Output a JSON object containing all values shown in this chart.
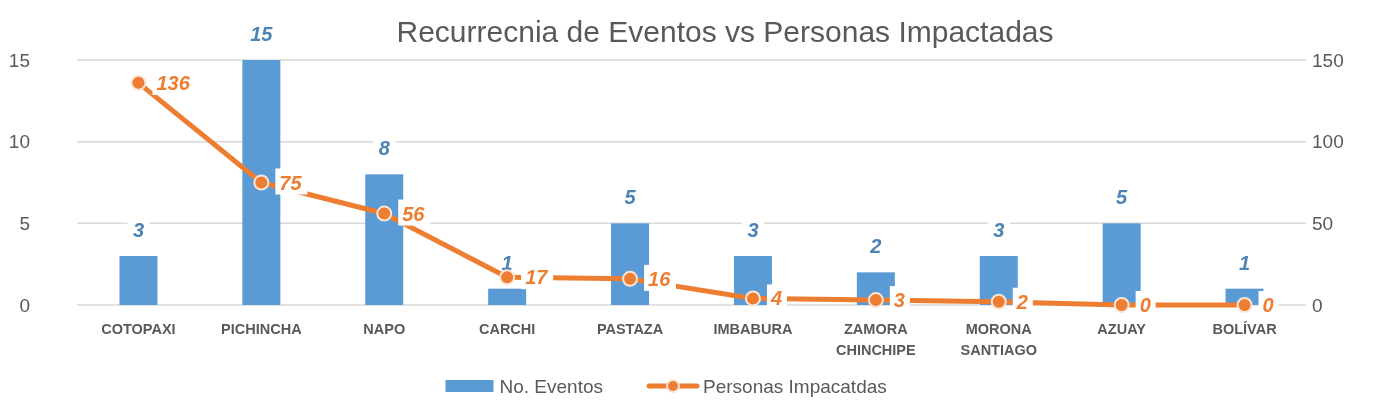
{
  "chart_data": {
    "type": "bar",
    "title": "Recurrecnia de Eventos vs Personas Impactadas",
    "categories": [
      "COTOPAXI",
      "PICHINCHA",
      "NAPO",
      "CARCHI",
      "PASTAZA",
      "IMBABURA",
      "ZAMORA CHINCHIPE",
      "MORONA SANTIAGO",
      "AZUAY",
      "BOLÍVAR"
    ],
    "series": [
      {
        "name": "No. Eventos",
        "color": "#5b9bd5",
        "values": [
          3,
          15,
          8,
          1,
          5,
          3,
          2,
          3,
          5,
          1
        ]
      },
      {
        "name": "Personas Impacatdas",
        "type": "line",
        "axis": "y2",
        "color": "#ed7d31",
        "values": [
          136,
          75,
          56,
          17,
          16,
          4,
          3,
          2,
          0,
          0
        ]
      }
    ],
    "ylim": [
      0,
      15
    ],
    "yticks": [
      0,
      5,
      10,
      15
    ],
    "y2lim": [
      0,
      150
    ],
    "y2ticks": [
      0,
      50,
      100,
      150
    ],
    "grid": "y",
    "legend": "bottom",
    "marker": "circle",
    "line_style": "solid",
    "data_labels": true
  }
}
